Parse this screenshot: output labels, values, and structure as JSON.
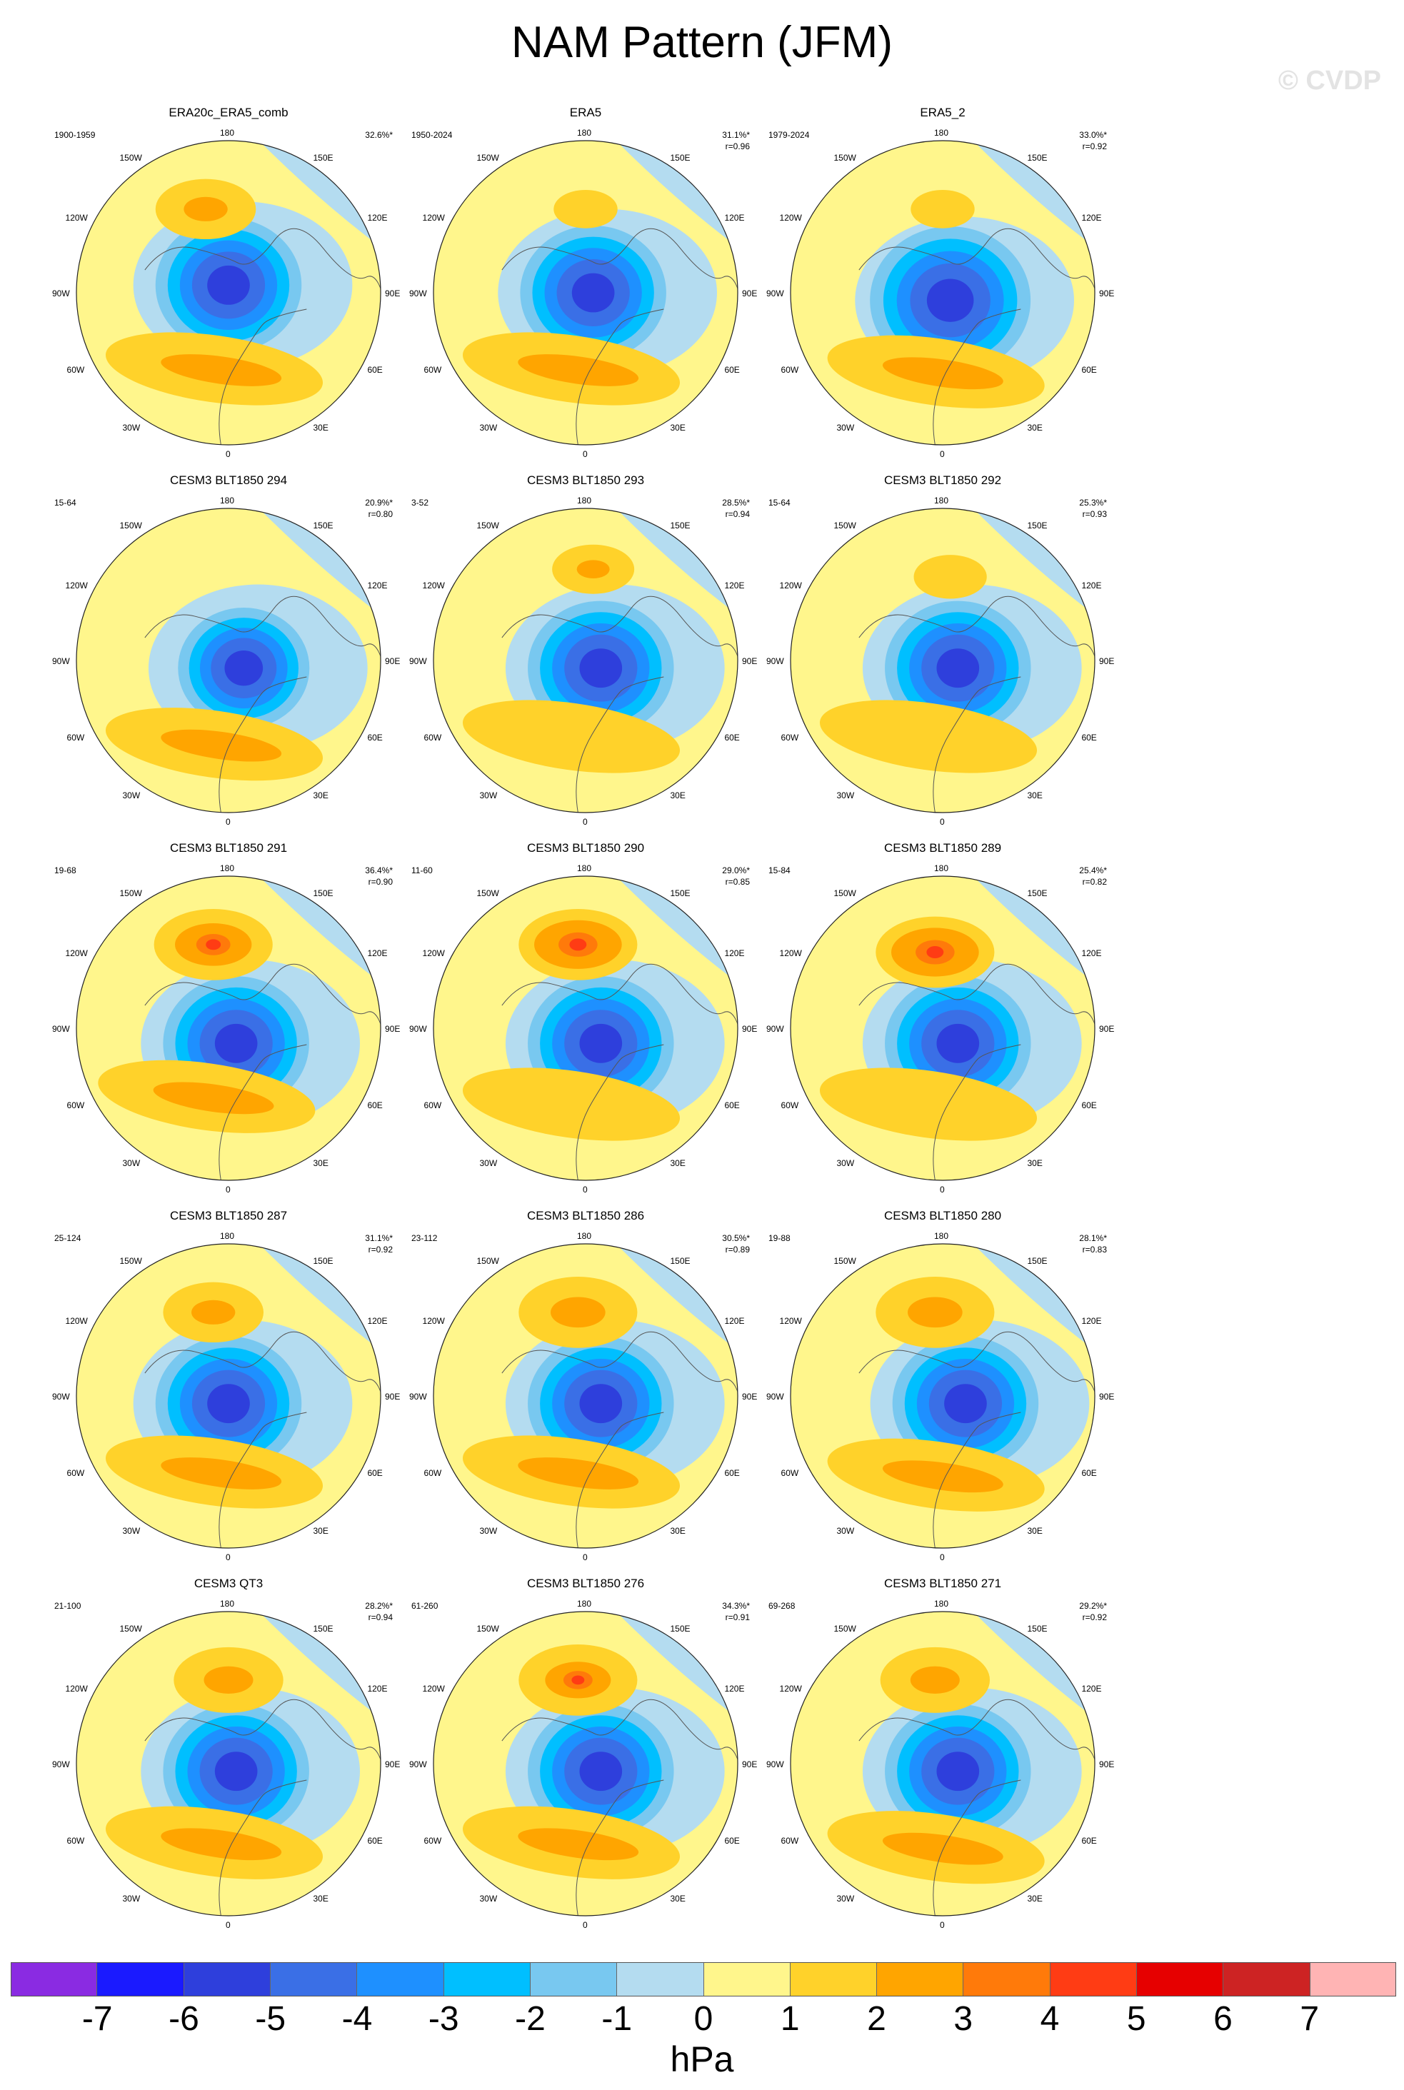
{
  "title": "NAM Pattern (JFM)",
  "watermark": "© CVDP",
  "longitude_labels": {
    "top": "180",
    "bottom": "0",
    "upper_left": "150W",
    "upper_right": "150E",
    "mid_upper_left": "120W",
    "mid_upper_right": "120E",
    "left": "90W",
    "right": "90E",
    "mid_lower_left": "60W",
    "mid_lower_right": "60E",
    "lower_left": "30W",
    "lower_right": "30E"
  },
  "panels": [
    {
      "title": "ERA20c_ERA5_comb",
      "years": "1900-1959",
      "pct": "32.6%*",
      "r": ""
    },
    {
      "title": "ERA5",
      "years": "1950-2024",
      "pct": "31.1%*",
      "r": "r=0.96"
    },
    {
      "title": "ERA5_2",
      "years": "1979-2024",
      "pct": "33.0%*",
      "r": "r=0.92"
    },
    {
      "title": "CESM3 BLT1850 294",
      "years": "15-64",
      "pct": "20.9%*",
      "r": "r=0.80"
    },
    {
      "title": "CESM3 BLT1850 293",
      "years": "3-52",
      "pct": "28.5%*",
      "r": "r=0.94"
    },
    {
      "title": "CESM3 BLT1850 292",
      "years": "15-64",
      "pct": "25.3%*",
      "r": "r=0.93"
    },
    {
      "title": "CESM3 BLT1850 291",
      "years": "19-68",
      "pct": "36.4%*",
      "r": "r=0.90"
    },
    {
      "title": "CESM3 BLT1850 290",
      "years": "11-60",
      "pct": "29.0%*",
      "r": "r=0.85"
    },
    {
      "title": "CESM3 BLT1850 289",
      "years": "15-84",
      "pct": "25.4%*",
      "r": "r=0.82"
    },
    {
      "title": "CESM3 BLT1850 287",
      "years": "25-124",
      "pct": "31.1%*",
      "r": "r=0.92"
    },
    {
      "title": "CESM3 BLT1850 286",
      "years": "23-112",
      "pct": "30.5%*",
      "r": "r=0.89"
    },
    {
      "title": "CESM3 BLT1850 280",
      "years": "19-88",
      "pct": "28.1%*",
      "r": "r=0.83"
    },
    {
      "title": "CESM3 QT3",
      "years": "21-100",
      "pct": "28.2%*",
      "r": "r=0.94"
    },
    {
      "title": "CESM3 BLT1850 276",
      "years": "61-260",
      "pct": "34.3%*",
      "r": "r=0.91"
    },
    {
      "title": "CESM3 BLT1850 271",
      "years": "69-268",
      "pct": "29.2%*",
      "r": "r=0.92"
    }
  ],
  "colorbar": {
    "colors": [
      "#8a2be2",
      "#1a1aff",
      "#2e3fdc",
      "#3a6fe6",
      "#1e90ff",
      "#00bfff",
      "#78c8f0",
      "#b4dcf0",
      "#fff68c",
      "#ffd22a",
      "#ffa500",
      "#ff7a0a",
      "#ff3c14",
      "#e60000",
      "#cd2323",
      "#ffb4b4"
    ],
    "labels": [
      "-7",
      "-6",
      "-5",
      "-4",
      "-3",
      "-2",
      "-1",
      "0",
      "1",
      "2",
      "3",
      "4",
      "5",
      "6",
      "7"
    ],
    "units": "hPa"
  }
}
